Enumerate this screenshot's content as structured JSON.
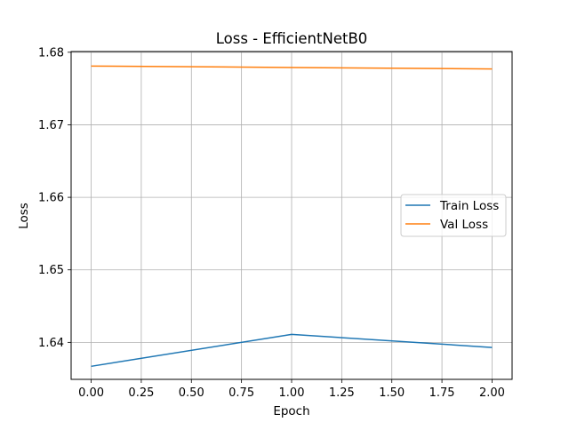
{
  "chart_data": {
    "type": "line",
    "title": "Loss - EfficientNetB0",
    "xlabel": "Epoch",
    "ylabel": "Loss",
    "x": [
      0,
      1,
      2
    ],
    "series": [
      {
        "name": "Train Loss",
        "values": [
          1.6367,
          1.6411,
          1.6393
        ],
        "color": "#1f77b4"
      },
      {
        "name": "Val Loss",
        "values": [
          1.6781,
          1.6779,
          1.6777
        ],
        "color": "#ff7f0e"
      }
    ],
    "xlim": [
      -0.1,
      2.1
    ],
    "ylim": [
      1.6349,
      1.6801
    ],
    "xticks": [
      0.0,
      0.25,
      0.5,
      0.75,
      1.0,
      1.25,
      1.5,
      1.75,
      2.0
    ],
    "xtick_labels": [
      "0.00",
      "0.25",
      "0.50",
      "0.75",
      "1.00",
      "1.25",
      "1.50",
      "1.75",
      "2.00"
    ],
    "yticks": [
      1.64,
      1.65,
      1.66,
      1.67,
      1.68
    ],
    "ytick_labels": [
      "1.64",
      "1.65",
      "1.66",
      "1.67",
      "1.68"
    ],
    "grid": true,
    "legend_position": "center-right"
  }
}
